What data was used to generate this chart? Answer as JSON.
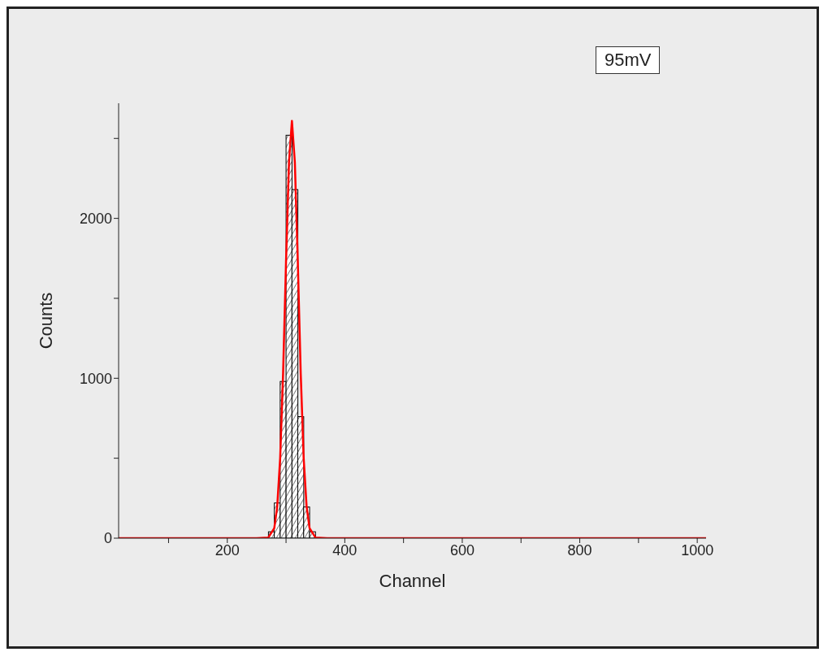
{
  "chart_data": {
    "type": "histogram",
    "xlabel": "Channel",
    "ylabel": "Counts",
    "annotations": [
      "95mV"
    ],
    "bins": [
      270,
      280,
      290,
      300,
      310,
      320,
      330,
      340,
      350
    ],
    "values": [
      40,
      220,
      980,
      2520,
      2180,
      760,
      195,
      40
    ],
    "color": "#000000",
    "series": [
      {
        "type": "line",
        "color": "#ff0000",
        "x": [
          15,
          250,
          270,
          280,
          285,
          290,
          295,
          300,
          305,
          310,
          315,
          320,
          325,
          330,
          335,
          340,
          350,
          370,
          1015
        ],
        "values": [
          0,
          0,
          4,
          63,
          198,
          500,
          1030,
          1730,
          2350,
          2610,
          2350,
          1730,
          1030,
          500,
          198,
          63,
          4,
          0,
          0
        ]
      }
    ],
    "xlim": [
      15,
      1015
    ],
    "xticks": [
      {
        "value": 100,
        "label": null
      },
      200,
      {
        "value": 300,
        "label": null
      },
      400,
      {
        "value": 500,
        "label": null
      },
      600,
      {
        "value": 700,
        "label": null
      },
      800,
      {
        "value": 900,
        "label": null
      },
      1000
    ],
    "ylim": [
      0,
      2720
    ],
    "yticks": [
      0,
      {
        "value": 500,
        "label": null
      },
      1000,
      {
        "value": 1500,
        "label": null
      },
      2000,
      {
        "value": 2500,
        "label": null
      }
    ]
  }
}
